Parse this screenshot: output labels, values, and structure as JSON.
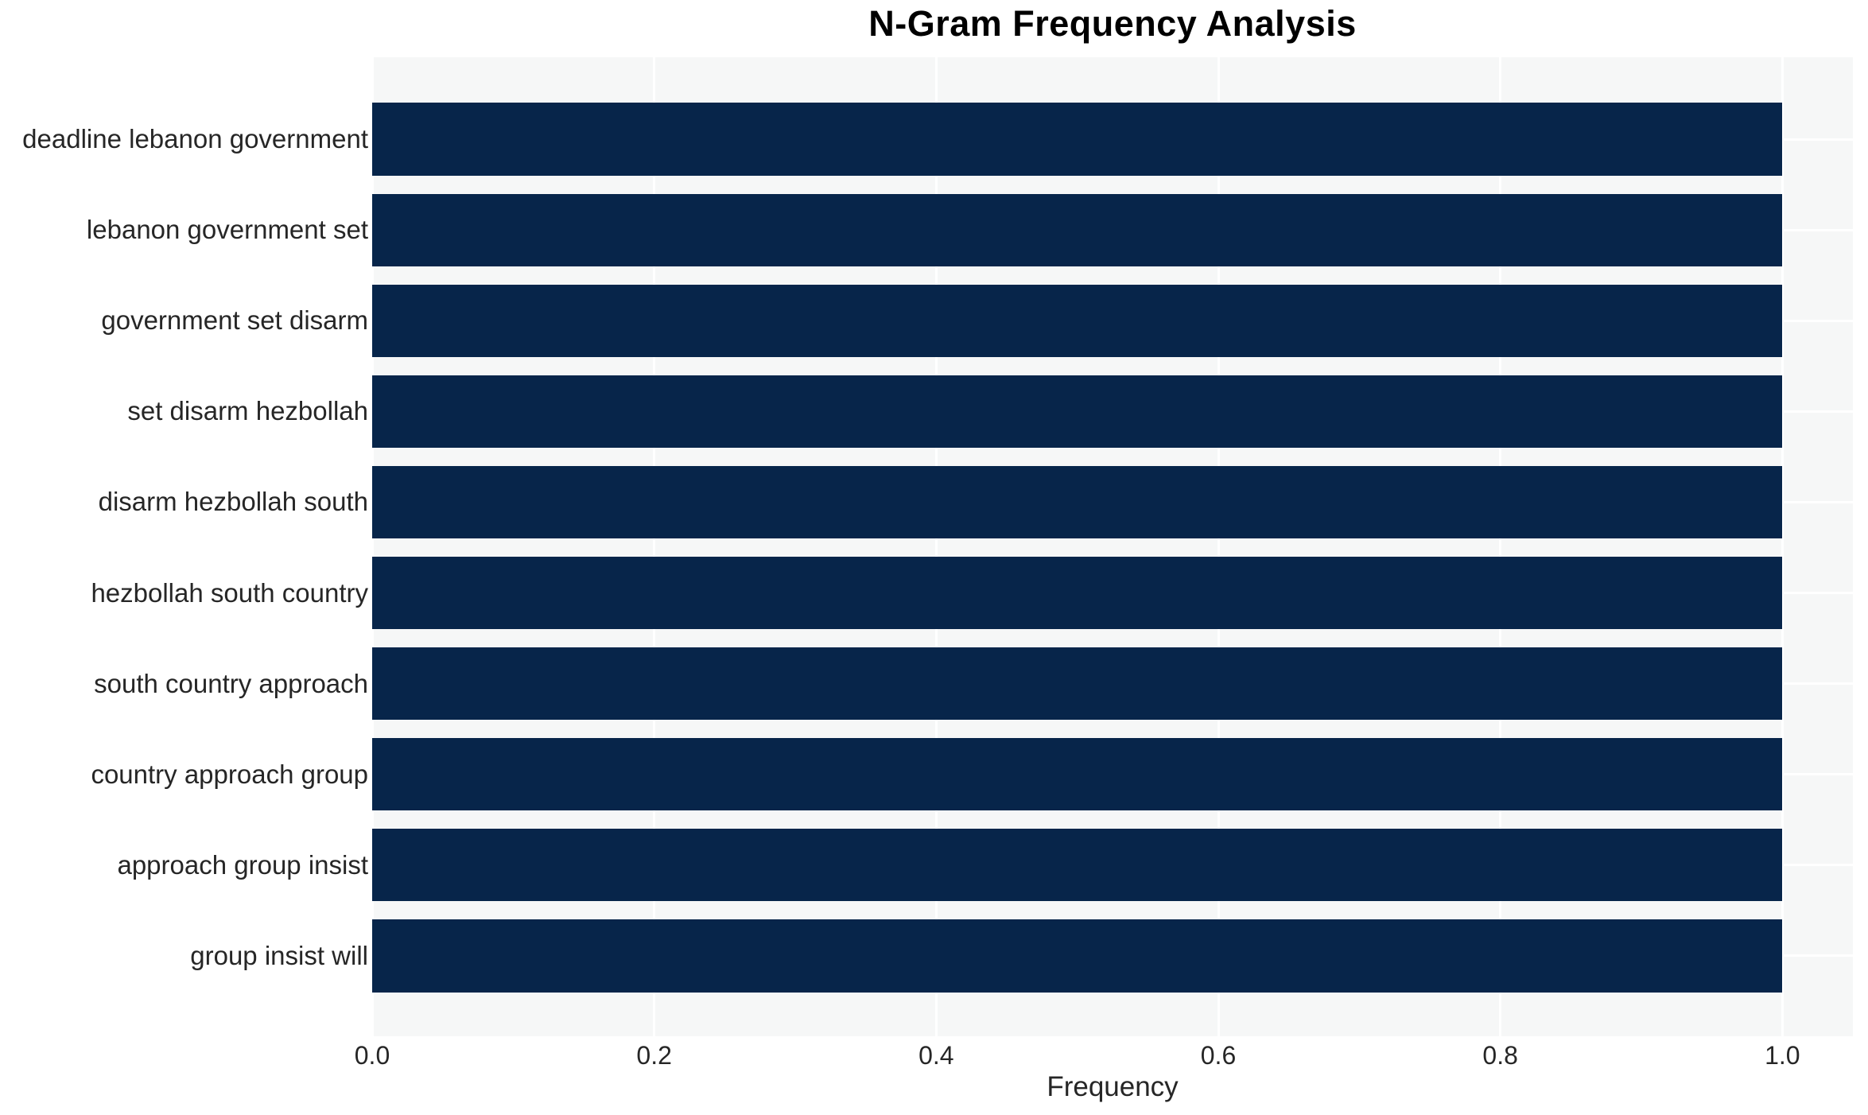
{
  "chart_data": {
    "type": "bar",
    "orientation": "horizontal",
    "title": "N-Gram Frequency Analysis",
    "xlabel": "Frequency",
    "ylabel": "",
    "categories": [
      "deadline lebanon government",
      "lebanon government set",
      "government set disarm",
      "set disarm hezbollah",
      "disarm hezbollah south",
      "hezbollah south country",
      "south country approach",
      "country approach group",
      "approach group insist",
      "group insist will"
    ],
    "values": [
      1.0,
      1.0,
      1.0,
      1.0,
      1.0,
      1.0,
      1.0,
      1.0,
      1.0,
      1.0
    ],
    "xticks": [
      0.0,
      0.2,
      0.4,
      0.6,
      0.8,
      1.0
    ],
    "xtick_labels": [
      "0.0",
      "0.2",
      "0.4",
      "0.6",
      "0.8",
      "1.0"
    ],
    "xlim": [
      0.0,
      1.05
    ],
    "grid": true,
    "legend": "none",
    "bar_height_fraction": 0.8,
    "colors": {
      "bar": "#07254a",
      "plot_background": "#f6f7f7",
      "gridline": "#ffffff",
      "text": "#262626",
      "title": "#000000",
      "figure_background": "#ffffff"
    }
  }
}
